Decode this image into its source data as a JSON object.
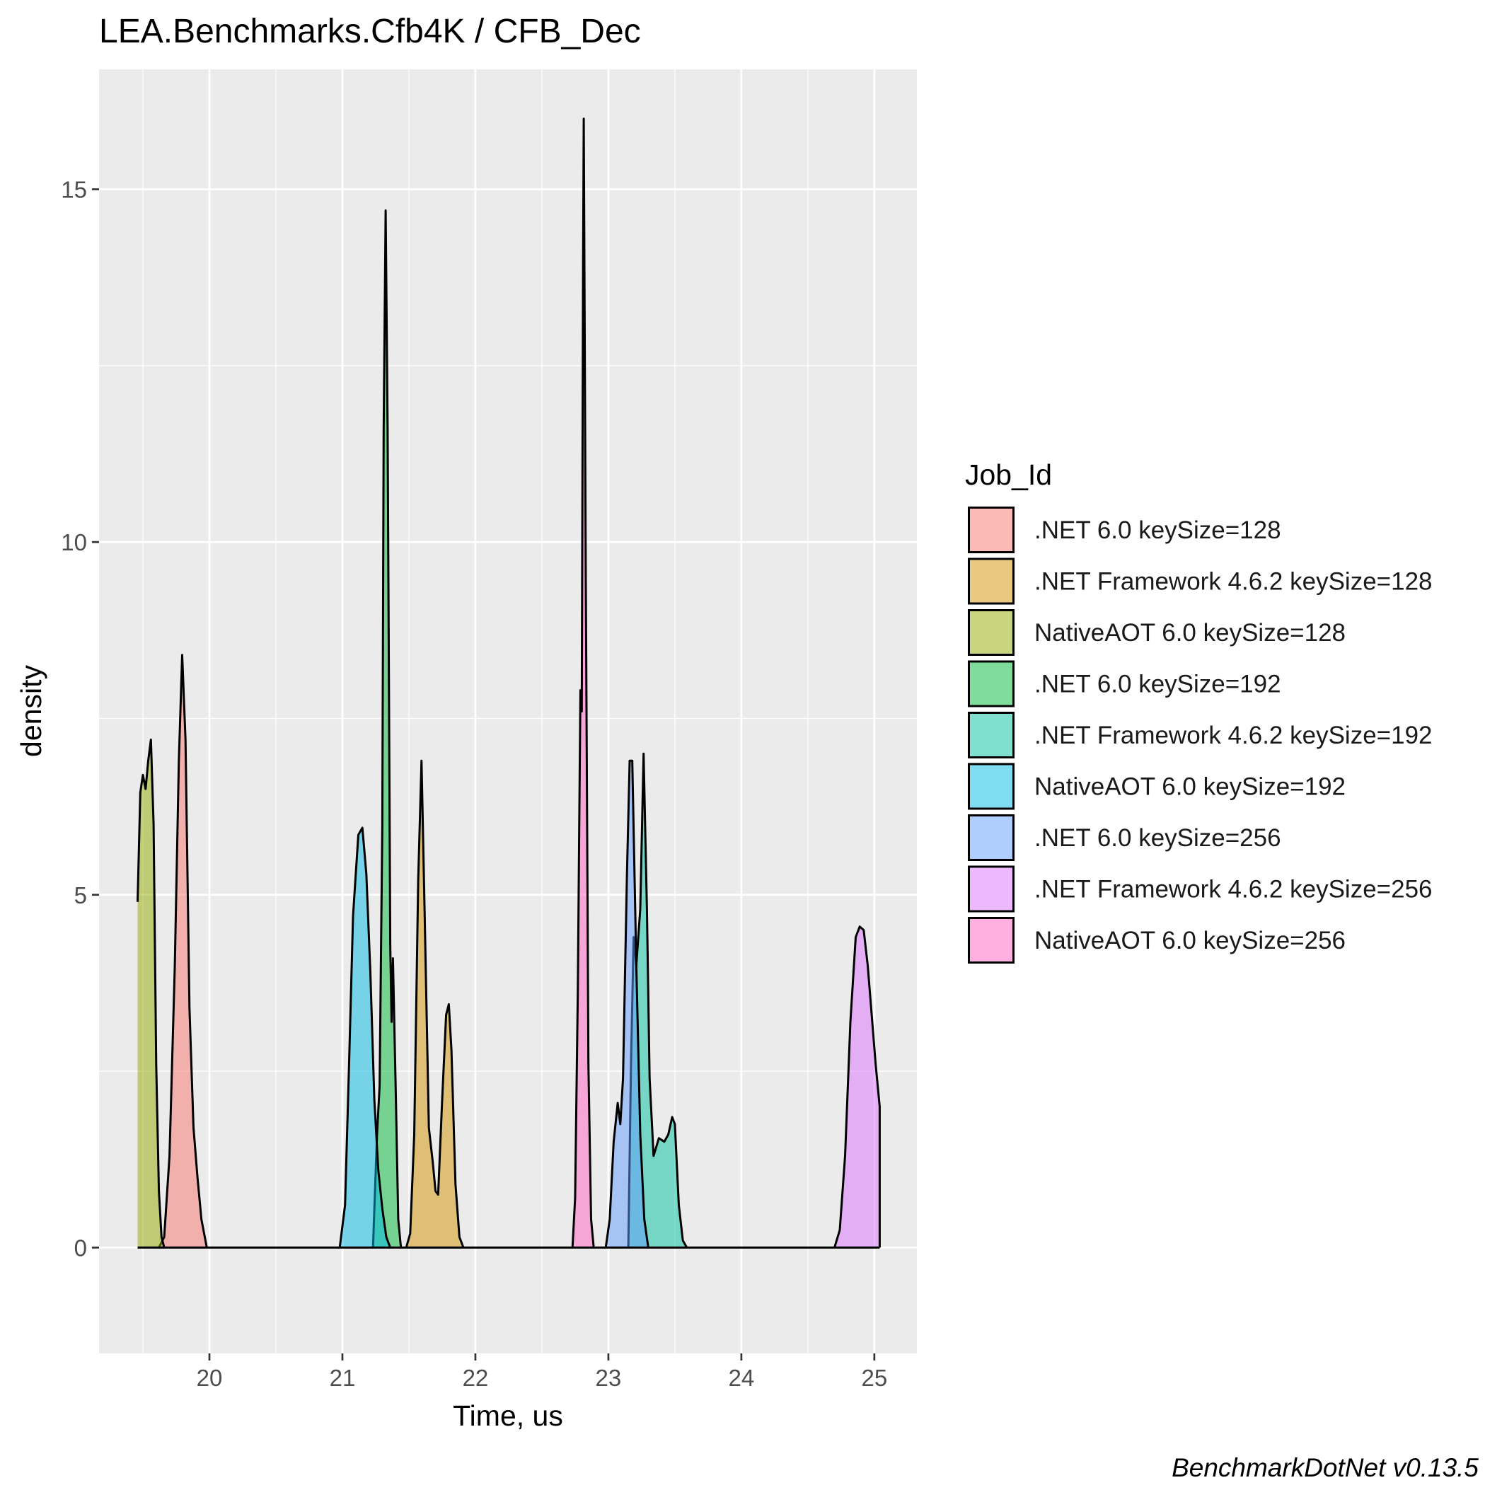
{
  "chart_data": {
    "type": "area",
    "title": "LEA.Benchmarks.Cfb4K / CFB_Dec",
    "xlabel": "Time, us",
    "ylabel": "density",
    "caption": "BenchmarkDotNet v0.13.5",
    "xlim": [
      19.17,
      25.32
    ],
    "ylim": [
      -1.5,
      16.7
    ],
    "x_ticks": [
      {
        "value": 20,
        "label": "20"
      },
      {
        "value": 21,
        "label": "21"
      },
      {
        "value": 22,
        "label": "22"
      },
      {
        "value": 23,
        "label": "23"
      },
      {
        "value": 24,
        "label": "24"
      },
      {
        "value": 25,
        "label": "25"
      }
    ],
    "y_ticks": [
      {
        "value": 0,
        "label": "0"
      },
      {
        "value": 5,
        "label": "5"
      },
      {
        "value": 10,
        "label": "10"
      },
      {
        "value": 15,
        "label": "15"
      }
    ],
    "grid": true,
    "legend": {
      "title": "Job_Id",
      "position": "right"
    },
    "x_range": [
      19.46,
      25.04
    ],
    "series": [
      {
        "name": ".NET 6.0 keySize=128",
        "color": "#F8766D",
        "points": [
          [
            19.62,
            0
          ],
          [
            19.66,
            0.15
          ],
          [
            19.7,
            1.3
          ],
          [
            19.74,
            4.0
          ],
          [
            19.77,
            6.9
          ],
          [
            19.795,
            8.4
          ],
          [
            19.82,
            7.2
          ],
          [
            19.85,
            3.4
          ],
          [
            19.88,
            1.7
          ],
          [
            19.91,
            1.0
          ],
          [
            19.94,
            0.4
          ],
          [
            19.98,
            0
          ]
        ]
      },
      {
        "name": ".NET Framework 4.6.2 keySize=128",
        "color": "#D39200",
        "points": [
          [
            21.48,
            0
          ],
          [
            21.51,
            0.2
          ],
          [
            21.54,
            1.6
          ],
          [
            21.57,
            5.2
          ],
          [
            21.595,
            6.9
          ],
          [
            21.62,
            4.6
          ],
          [
            21.65,
            1.7
          ],
          [
            21.68,
            1.2
          ],
          [
            21.7,
            0.8
          ],
          [
            21.72,
            0.75
          ],
          [
            21.75,
            2.1
          ],
          [
            21.78,
            3.3
          ],
          [
            21.8,
            3.45
          ],
          [
            21.82,
            2.8
          ],
          [
            21.85,
            0.9
          ],
          [
            21.88,
            0.15
          ],
          [
            21.91,
            0
          ]
        ]
      },
      {
        "name": "NativeAOT 6.0 keySize=128",
        "color": "#93AA00",
        "points": [
          [
            19.46,
            4.9
          ],
          [
            19.48,
            6.45
          ],
          [
            19.5,
            6.7
          ],
          [
            19.52,
            6.5
          ],
          [
            19.54,
            6.9
          ],
          [
            19.56,
            7.2
          ],
          [
            19.58,
            6.0
          ],
          [
            19.6,
            2.6
          ],
          [
            19.62,
            0.8
          ],
          [
            19.64,
            0.15
          ],
          [
            19.66,
            0
          ]
        ]
      },
      {
        "name": ".NET 6.0 keySize=192",
        "color": "#00BA38",
        "points": [
          [
            21.23,
            0
          ],
          [
            21.26,
            1.6
          ],
          [
            21.28,
            2.3
          ],
          [
            21.3,
            6.0
          ],
          [
            21.31,
            11.6
          ],
          [
            21.325,
            14.7
          ],
          [
            21.34,
            11.6
          ],
          [
            21.36,
            4.3
          ],
          [
            21.37,
            3.2
          ],
          [
            21.38,
            4.1
          ],
          [
            21.4,
            2.3
          ],
          [
            21.42,
            0.4
          ],
          [
            21.44,
            0
          ]
        ]
      },
      {
        "name": ".NET Framework 4.6.2 keySize=192",
        "color": "#00C19F",
        "points": [
          [
            23.15,
            0
          ],
          [
            23.17,
            2.6
          ],
          [
            23.19,
            4.4
          ],
          [
            23.21,
            4.0
          ],
          [
            23.24,
            4.8
          ],
          [
            23.265,
            7.0
          ],
          [
            23.29,
            4.8
          ],
          [
            23.31,
            2.4
          ],
          [
            23.34,
            1.3
          ],
          [
            23.38,
            1.55
          ],
          [
            23.42,
            1.5
          ],
          [
            23.45,
            1.6
          ],
          [
            23.48,
            1.85
          ],
          [
            23.5,
            1.75
          ],
          [
            23.53,
            0.6
          ],
          [
            23.56,
            0.1
          ],
          [
            23.59,
            0
          ]
        ]
      },
      {
        "name": "NativeAOT 6.0 keySize=192",
        "color": "#00B9E3",
        "points": [
          [
            20.98,
            0
          ],
          [
            21.02,
            0.6
          ],
          [
            21.05,
            2.6
          ],
          [
            21.08,
            4.7
          ],
          [
            21.12,
            5.85
          ],
          [
            21.15,
            5.95
          ],
          [
            21.18,
            5.3
          ],
          [
            21.21,
            3.9
          ],
          [
            21.24,
            2.1
          ],
          [
            21.27,
            1.1
          ],
          [
            21.3,
            0.55
          ],
          [
            21.33,
            0.15
          ],
          [
            21.36,
            0
          ]
        ]
      },
      {
        "name": ".NET 6.0 keySize=256",
        "color": "#619CFF",
        "points": [
          [
            22.98,
            0
          ],
          [
            23.01,
            0.4
          ],
          [
            23.04,
            1.5
          ],
          [
            23.07,
            2.05
          ],
          [
            23.09,
            1.75
          ],
          [
            23.11,
            2.4
          ],
          [
            23.14,
            5.3
          ],
          [
            23.16,
            6.9
          ],
          [
            23.18,
            6.9
          ],
          [
            23.21,
            4.0
          ],
          [
            23.24,
            1.6
          ],
          [
            23.27,
            0.4
          ],
          [
            23.3,
            0
          ]
        ]
      },
      {
        "name": ".NET Framework 4.6.2 keySize=256",
        "color": "#DB72FB",
        "points": [
          [
            24.7,
            0
          ],
          [
            24.74,
            0.25
          ],
          [
            24.78,
            1.3
          ],
          [
            24.82,
            3.2
          ],
          [
            24.86,
            4.4
          ],
          [
            24.89,
            4.55
          ],
          [
            24.92,
            4.5
          ],
          [
            24.95,
            4.0
          ],
          [
            24.98,
            3.3
          ],
          [
            25.01,
            2.6
          ],
          [
            25.04,
            2.0
          ],
          [
            25.04,
            0
          ]
        ]
      },
      {
        "name": "NativeAOT 6.0 keySize=256",
        "color": "#FF61C3",
        "points": [
          [
            22.73,
            0
          ],
          [
            22.75,
            0.7
          ],
          [
            22.77,
            3.6
          ],
          [
            22.79,
            7.9
          ],
          [
            22.8,
            7.6
          ],
          [
            22.81,
            14.0
          ],
          [
            22.815,
            16.0
          ],
          [
            22.83,
            9.5
          ],
          [
            22.85,
            2.6
          ],
          [
            22.87,
            0.4
          ],
          [
            22.89,
            0
          ]
        ]
      }
    ]
  }
}
